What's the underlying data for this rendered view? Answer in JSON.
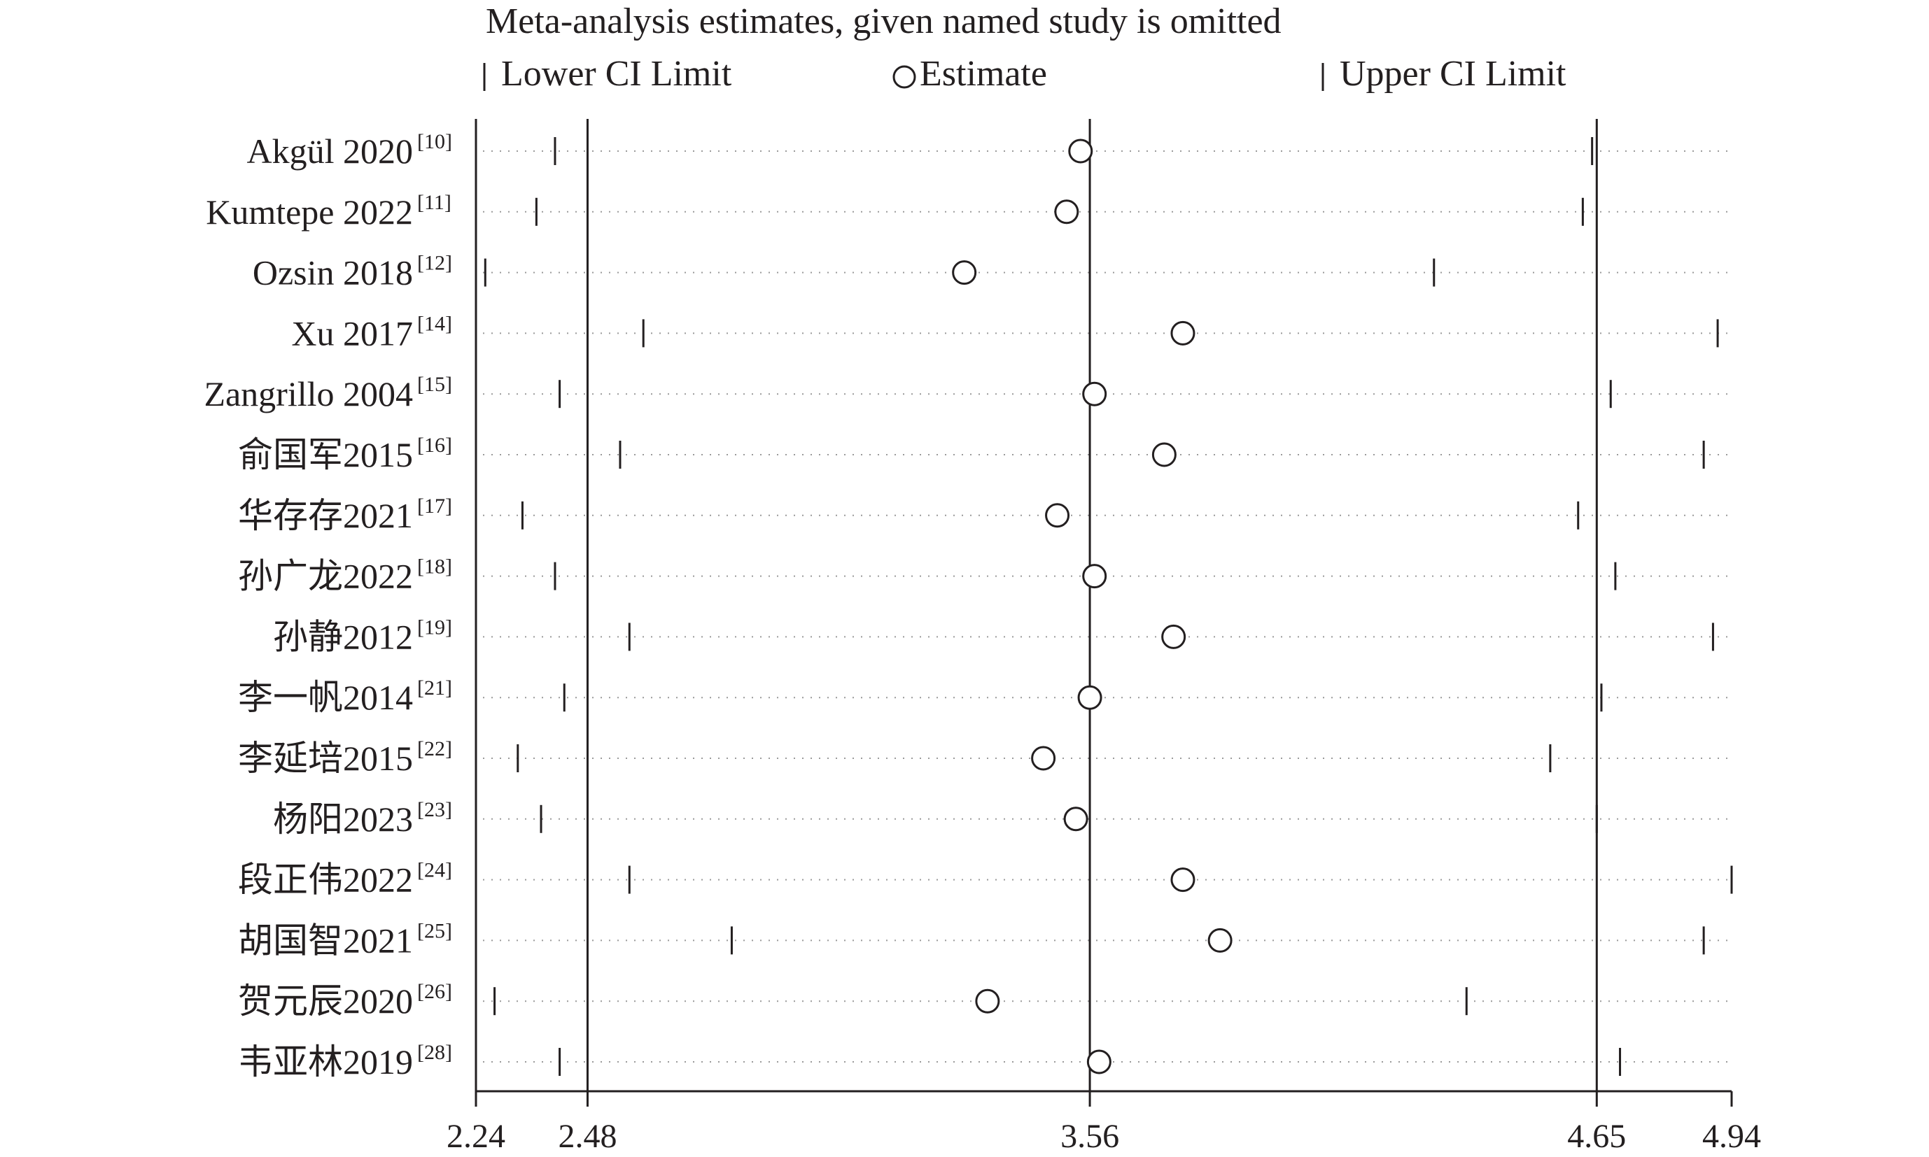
{
  "chart_data": {
    "type": "scatter",
    "title": "Meta-analysis estimates, given named study is omitted",
    "legend": {
      "placement": "top",
      "lower_label": "Lower CI Limit",
      "estimate_label": "Estimate",
      "upper_label": "Upper CI Limit"
    },
    "xlim": [
      2.24,
      4.94
    ],
    "x_ticks": [
      {
        "value": 2.24,
        "label": "2.24"
      },
      {
        "value": 2.48,
        "label": "2.48"
      },
      {
        "value": 3.56,
        "label": "3.56"
      },
      {
        "value": 4.65,
        "label": "4.65"
      },
      {
        "value": 4.94,
        "label": "4.94"
      }
    ],
    "reference_lines": [
      2.48,
      3.56,
      4.65
    ],
    "studies": [
      {
        "name": "Akgül 2020",
        "ref": "[10]",
        "lower": 2.41,
        "estimate": 3.54,
        "upper": 4.64
      },
      {
        "name": "Kumtepe 2022",
        "ref": "[11]",
        "lower": 2.37,
        "estimate": 3.51,
        "upper": 4.62
      },
      {
        "name": "Ozsin 2018",
        "ref": "[12]",
        "lower": 2.26,
        "estimate": 3.29,
        "upper": 4.3
      },
      {
        "name": "Xu 2017",
        "ref": "[14]",
        "lower": 2.6,
        "estimate": 3.76,
        "upper": 4.91
      },
      {
        "name": "Zangrillo 2004",
        "ref": "[15]",
        "lower": 2.42,
        "estimate": 3.57,
        "upper": 4.68
      },
      {
        "name": "俞国军2015",
        "ref": "[16]",
        "lower": 2.55,
        "estimate": 3.72,
        "upper": 4.88
      },
      {
        "name": "华存存2021",
        "ref": "[17]",
        "lower": 2.34,
        "estimate": 3.49,
        "upper": 4.61
      },
      {
        "name": "孙广龙2022",
        "ref": "[18]",
        "lower": 2.41,
        "estimate": 3.57,
        "upper": 4.69
      },
      {
        "name": "孙静2012",
        "ref": "[19]",
        "lower": 2.57,
        "estimate": 3.74,
        "upper": 4.9
      },
      {
        "name": "李一帆2014",
        "ref": "[21]",
        "lower": 2.43,
        "estimate": 3.56,
        "upper": 4.66
      },
      {
        "name": "李延培2015",
        "ref": "[22]",
        "lower": 2.33,
        "estimate": 3.46,
        "upper": 4.55
      },
      {
        "name": "杨阳2023",
        "ref": "[23]",
        "lower": 2.38,
        "estimate": 3.53,
        "upper": 4.65
      },
      {
        "name": "段正伟2022",
        "ref": "[24]",
        "lower": 2.57,
        "estimate": 3.76,
        "upper": 4.94
      },
      {
        "name": "胡国智2021",
        "ref": "[25]",
        "lower": 2.79,
        "estimate": 3.84,
        "upper": 4.88
      },
      {
        "name": "贺元辰2020",
        "ref": "[26]",
        "lower": 2.28,
        "estimate": 3.34,
        "upper": 4.37
      },
      {
        "name": "韦亚林2019",
        "ref": "[28]",
        "lower": 2.42,
        "estimate": 3.58,
        "upper": 4.7
      }
    ]
  }
}
